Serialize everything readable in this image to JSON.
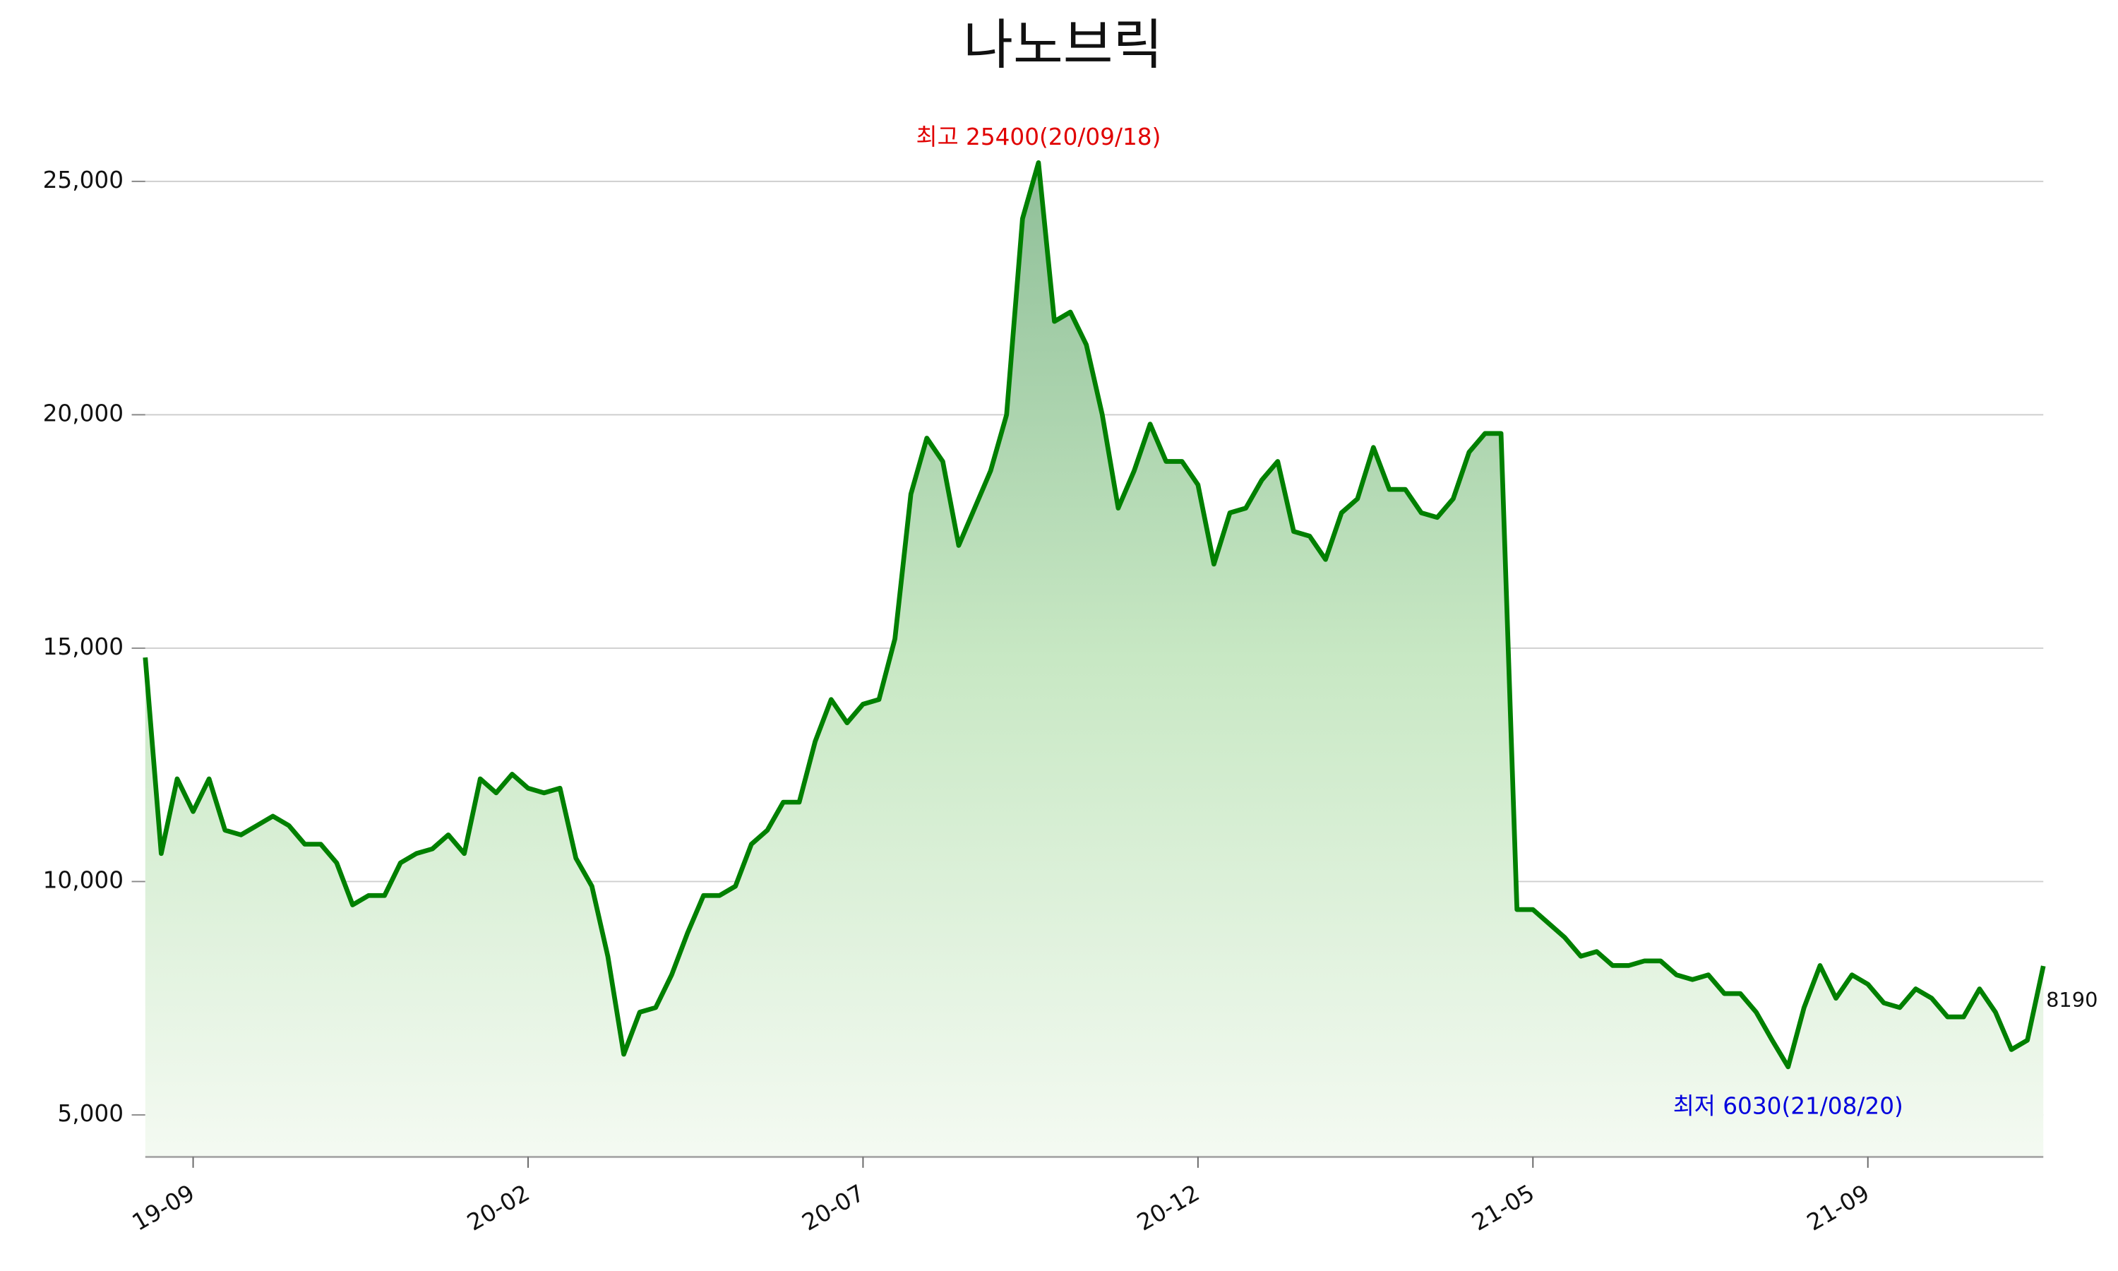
{
  "chart_data": {
    "type": "area",
    "title": "나노브릭",
    "color": "#008000",
    "categories": [
      null,
      null,
      null,
      "19-09",
      null,
      null,
      null,
      null,
      null,
      null,
      null,
      null,
      null,
      null,
      null,
      null,
      null,
      null,
      null,
      null,
      null,
      null,
      null,
      null,
      "20-02",
      null,
      null,
      null,
      null,
      null,
      null,
      null,
      null,
      null,
      null,
      null,
      null,
      null,
      null,
      null,
      null,
      null,
      null,
      null,
      null,
      "20-07",
      null,
      null,
      null,
      null,
      null,
      null,
      null,
      null,
      null,
      null,
      null,
      null,
      null,
      null,
      null,
      null,
      null,
      null,
      null,
      null,
      "20-12",
      null,
      null,
      null,
      null,
      null,
      null,
      null,
      null,
      null,
      null,
      null,
      null,
      null,
      null,
      null,
      null,
      null,
      null,
      null,
      null,
      "21-05",
      null,
      null,
      null,
      null,
      null,
      null,
      null,
      null,
      null,
      null,
      null,
      null,
      null,
      null,
      null,
      null,
      null,
      null,
      null,
      null,
      "21-09",
      null,
      null,
      null,
      null,
      null,
      null,
      null,
      null,
      null,
      null,
      null
    ],
    "values": [
      14800,
      10600,
      12200,
      11500,
      12200,
      11100,
      11000,
      11200,
      11400,
      11200,
      10800,
      10800,
      10400,
      9500,
      9700,
      9700,
      10400,
      10600,
      10700,
      11000,
      10600,
      12200,
      11900,
      12300,
      12000,
      11900,
      12000,
      10500,
      9900,
      8400,
      6300,
      7200,
      7300,
      8000,
      8900,
      9700,
      9700,
      9900,
      10800,
      11100,
      11700,
      11700,
      13000,
      13900,
      13400,
      13800,
      13900,
      15200,
      18300,
      19500,
      19000,
      17200,
      18000,
      18800,
      20000,
      24200,
      25400,
      22000,
      22200,
      21500,
      20000,
      18000,
      18800,
      19800,
      19000,
      19000,
      18500,
      16800,
      17900,
      18000,
      18600,
      19000,
      17500,
      17400,
      16900,
      17900,
      18200,
      19300,
      18400,
      18400,
      17900,
      17800,
      18200,
      19200,
      19600,
      19600,
      9400,
      9400,
      9100,
      8800,
      8400,
      8500,
      8200,
      8200,
      8300,
      8300,
      8000,
      7900,
      8000,
      7600,
      7600,
      7200,
      6600,
      6030,
      7300,
      8200,
      7500,
      8000,
      7800,
      7400,
      7300,
      7700,
      7500,
      7100,
      7100,
      7700,
      7200,
      6400,
      6600,
      8190
    ],
    "ylim": [
      4100,
      26500
    ],
    "yticks": [
      {
        "value": 5000,
        "label": "5,000"
      },
      {
        "value": 10000,
        "label": "10,000"
      },
      {
        "value": 15000,
        "label": "15,000"
      },
      {
        "value": 20000,
        "label": "20,000"
      },
      {
        "value": 25000,
        "label": "25,000"
      }
    ],
    "grid": true,
    "annotations": {
      "max": "최고 25400(20/09/18)",
      "min": "최저 6030(21/08/20)"
    },
    "annotation_colors": {
      "max": "#e00000",
      "min": "#0000dd"
    }
  }
}
